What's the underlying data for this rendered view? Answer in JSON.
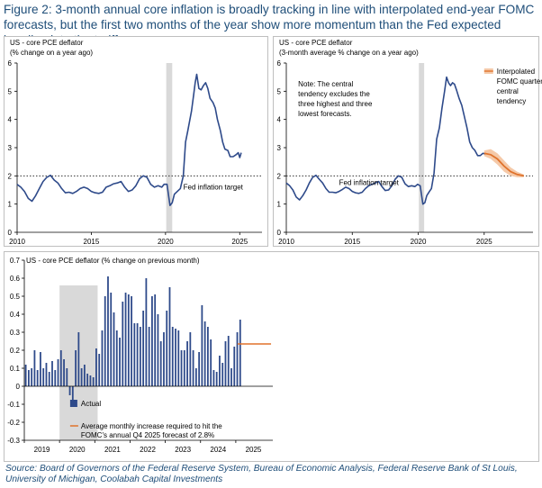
{
  "figure": {
    "title": "Figure 2: 3-month annual core  inflation is broadly tracking in line with interpolated end-year FOMC forecasts, but the first two months  of the year show more momentum than the Fed expected heading into the tariffs",
    "source": "Source: Board of Governors of the Federal Reserve System,  Bureau of Economic Analysis, Federal Reserve Bank of St Louis, University of Michigan, Coolabah Capital Investments"
  },
  "colors": {
    "series": "#2e4a8a",
    "target": "#333333",
    "fomc": "#e0722b",
    "band": "#f5c9a8",
    "shade": "#d9d9d9",
    "axis": "#000000"
  },
  "chart_data": [
    {
      "type": "line",
      "title_lines": [
        "US - core PCE deflator",
        "(% change on a year ago)"
      ],
      "xlim": [
        2010,
        2026.5
      ],
      "ylim": [
        0,
        6
      ],
      "x_ticks": [
        2010,
        2015,
        2020,
        2025
      ],
      "y_ticks": [
        0,
        1,
        2,
        3,
        4,
        5,
        6
      ],
      "reference_line": {
        "value": 2,
        "label": "Fed inflation target",
        "style": "dotted"
      },
      "shaded_period": [
        2020.05,
        2020.45
      ],
      "series": [
        {
          "points": [
            [
              2010.0,
              1.7
            ],
            [
              2010.25,
              1.6
            ],
            [
              2010.5,
              1.45
            ],
            [
              2010.75,
              1.2
            ],
            [
              2011.0,
              1.1
            ],
            [
              2011.25,
              1.3
            ],
            [
              2011.5,
              1.55
            ],
            [
              2011.75,
              1.8
            ],
            [
              2012.0,
              1.95
            ],
            [
              2012.25,
              2.02
            ],
            [
              2012.5,
              1.85
            ],
            [
              2012.75,
              1.75
            ],
            [
              2013.0,
              1.55
            ],
            [
              2013.25,
              1.4
            ],
            [
              2013.5,
              1.42
            ],
            [
              2013.75,
              1.38
            ],
            [
              2014.0,
              1.45
            ],
            [
              2014.25,
              1.55
            ],
            [
              2014.5,
              1.6
            ],
            [
              2014.75,
              1.55
            ],
            [
              2015.0,
              1.45
            ],
            [
              2015.25,
              1.4
            ],
            [
              2015.5,
              1.38
            ],
            [
              2015.75,
              1.42
            ],
            [
              2016.0,
              1.6
            ],
            [
              2016.25,
              1.65
            ],
            [
              2016.5,
              1.72
            ],
            [
              2016.75,
              1.75
            ],
            [
              2017.0,
              1.8
            ],
            [
              2017.25,
              1.6
            ],
            [
              2017.5,
              1.45
            ],
            [
              2017.75,
              1.5
            ],
            [
              2018.0,
              1.65
            ],
            [
              2018.25,
              1.9
            ],
            [
              2018.5,
              2.0
            ],
            [
              2018.75,
              1.95
            ],
            [
              2019.0,
              1.7
            ],
            [
              2019.25,
              1.6
            ],
            [
              2019.5,
              1.65
            ],
            [
              2019.75,
              1.6
            ],
            [
              2019.9,
              1.7
            ],
            [
              2020.1,
              1.7
            ],
            [
              2020.3,
              0.95
            ],
            [
              2020.45,
              1.05
            ],
            [
              2020.6,
              1.35
            ],
            [
              2020.8,
              1.45
            ],
            [
              2021.0,
              1.55
            ],
            [
              2021.2,
              2.0
            ],
            [
              2021.35,
              3.2
            ],
            [
              2021.5,
              3.6
            ],
            [
              2021.75,
              4.3
            ],
            [
              2021.9,
              4.9
            ],
            [
              2022.0,
              5.3
            ],
            [
              2022.1,
              5.6
            ],
            [
              2022.25,
              5.1
            ],
            [
              2022.4,
              5.05
            ],
            [
              2022.55,
              5.2
            ],
            [
              2022.7,
              5.3
            ],
            [
              2022.85,
              5.1
            ],
            [
              2023.0,
              4.75
            ],
            [
              2023.2,
              4.6
            ],
            [
              2023.35,
              4.4
            ],
            [
              2023.5,
              4.0
            ],
            [
              2023.7,
              3.6
            ],
            [
              2023.85,
              3.2
            ],
            [
              2024.0,
              2.95
            ],
            [
              2024.2,
              2.9
            ],
            [
              2024.35,
              2.68
            ],
            [
              2024.55,
              2.68
            ],
            [
              2024.75,
              2.75
            ],
            [
              2024.9,
              2.82
            ],
            [
              2025.0,
              2.65
            ],
            [
              2025.1,
              2.82
            ]
          ]
        }
      ]
    },
    {
      "type": "line",
      "title_lines": [
        "US - core PCE deflator",
        "(3-month average % change on a year ago)"
      ],
      "xlim": [
        2010,
        2028.7
      ],
      "ylim": [
        0,
        6
      ],
      "x_ticks": [
        2010,
        2015,
        2020,
        2025
      ],
      "y_ticks": [
        0,
        1,
        2,
        3,
        4,
        5,
        6
      ],
      "reference_line": {
        "value": 2,
        "label": "Fed inflation target",
        "style": "dotted"
      },
      "shaded_period": [
        2020.05,
        2020.45
      ],
      "note_lines": [
        "Note: The central",
        "tendency excludes the",
        "three highest and three",
        "lowest forecasts."
      ],
      "legend": {
        "position": "top-right",
        "label_lines": [
          "Interpolated",
          "FOMC quarterly",
          "central",
          "tendency"
        ]
      },
      "series": [
        {
          "points": [
            [
              2010.0,
              1.75
            ],
            [
              2010.25,
              1.65
            ],
            [
              2010.5,
              1.5
            ],
            [
              2010.75,
              1.25
            ],
            [
              2011.0,
              1.15
            ],
            [
              2011.25,
              1.3
            ],
            [
              2011.5,
              1.5
            ],
            [
              2011.75,
              1.75
            ],
            [
              2012.0,
              1.95
            ],
            [
              2012.25,
              2.02
            ],
            [
              2012.5,
              1.88
            ],
            [
              2012.75,
              1.75
            ],
            [
              2013.0,
              1.55
            ],
            [
              2013.25,
              1.42
            ],
            [
              2013.5,
              1.42
            ],
            [
              2013.75,
              1.4
            ],
            [
              2014.0,
              1.45
            ],
            [
              2014.25,
              1.52
            ],
            [
              2014.5,
              1.6
            ],
            [
              2014.75,
              1.55
            ],
            [
              2015.0,
              1.45
            ],
            [
              2015.25,
              1.4
            ],
            [
              2015.5,
              1.38
            ],
            [
              2015.75,
              1.42
            ],
            [
              2016.0,
              1.55
            ],
            [
              2016.25,
              1.65
            ],
            [
              2016.5,
              1.7
            ],
            [
              2016.75,
              1.75
            ],
            [
              2017.0,
              1.8
            ],
            [
              2017.25,
              1.62
            ],
            [
              2017.5,
              1.48
            ],
            [
              2017.75,
              1.5
            ],
            [
              2018.0,
              1.65
            ],
            [
              2018.25,
              1.88
            ],
            [
              2018.5,
              2.0
            ],
            [
              2018.75,
              1.95
            ],
            [
              2019.0,
              1.72
            ],
            [
              2019.25,
              1.62
            ],
            [
              2019.5,
              1.65
            ],
            [
              2019.75,
              1.62
            ],
            [
              2019.95,
              1.7
            ],
            [
              2020.15,
              1.65
            ],
            [
              2020.35,
              1.0
            ],
            [
              2020.5,
              1.05
            ],
            [
              2020.65,
              1.3
            ],
            [
              2020.85,
              1.45
            ],
            [
              2021.0,
              1.55
            ],
            [
              2021.2,
              2.1
            ],
            [
              2021.4,
              3.3
            ],
            [
              2021.6,
              3.7
            ],
            [
              2021.8,
              4.4
            ],
            [
              2022.0,
              5.0
            ],
            [
              2022.15,
              5.5
            ],
            [
              2022.3,
              5.3
            ],
            [
              2022.45,
              5.2
            ],
            [
              2022.6,
              5.3
            ],
            [
              2022.75,
              5.25
            ],
            [
              2022.9,
              5.05
            ],
            [
              2023.1,
              4.75
            ],
            [
              2023.3,
              4.5
            ],
            [
              2023.5,
              4.1
            ],
            [
              2023.7,
              3.7
            ],
            [
              2023.9,
              3.2
            ],
            [
              2024.1,
              3.0
            ],
            [
              2024.3,
              2.9
            ],
            [
              2024.5,
              2.72
            ],
            [
              2024.7,
              2.72
            ],
            [
              2024.9,
              2.8
            ],
            [
              2025.1,
              2.78
            ]
          ]
        },
        {
          "name": "Interpolated FOMC quarterly central tendency",
          "points": [
            [
              2025.0,
              2.8
            ],
            [
              2025.5,
              2.75
            ],
            [
              2026.0,
              2.6
            ],
            [
              2026.5,
              2.35
            ],
            [
              2027.0,
              2.15
            ],
            [
              2027.5,
              2.05
            ],
            [
              2028.0,
              2.0
            ]
          ],
          "band": [
            [
              2025.0,
              2.7,
              2.9
            ],
            [
              2025.5,
              2.6,
              2.95
            ],
            [
              2026.0,
              2.4,
              2.8
            ],
            [
              2026.5,
              2.15,
              2.55
            ],
            [
              2027.0,
              2.0,
              2.3
            ],
            [
              2027.5,
              1.95,
              2.15
            ],
            [
              2028.0,
              1.95,
              2.05
            ]
          ]
        }
      ]
    },
    {
      "type": "bar",
      "title": "US - core PCE deflator (% change on previous month)",
      "x_start": 2019.0,
      "periods_per_year": 12,
      "xlim": [
        2019,
        2026.05
      ],
      "ylim": [
        -0.3,
        0.7
      ],
      "x_ticks": [
        2019,
        2020,
        2021,
        2022,
        2023,
        2024,
        2025
      ],
      "y_ticks": [
        -0.3,
        -0.2,
        -0.1,
        0,
        0.1,
        0.2,
        0.3,
        0.4,
        0.5,
        0.6,
        0.7
      ],
      "shaded_period": [
        2020.0,
        2021.08
      ],
      "legend": {
        "position": "center-right",
        "actual_label": "Actual",
        "required_label_lines": [
          "Average monthly increase required to hit the",
          "FOMC's annual Q4 2025 forecast of 2.8%"
        ]
      },
      "series": [
        {
          "name": "Actual",
          "values": [
            0.12,
            0.09,
            0.1,
            0.2,
            0.09,
            0.19,
            0.1,
            0.13,
            0.08,
            0.14,
            0.09,
            0.15,
            0.2,
            0.15,
            0.1,
            -0.05,
            -0.09,
            0.2,
            0.3,
            0.1,
            0.12,
            0.07,
            0.06,
            0.05,
            0.21,
            0.18,
            0.31,
            0.5,
            0.61,
            0.52,
            0.41,
            0.31,
            0.27,
            0.47,
            0.52,
            0.51,
            0.5,
            0.35,
            0.35,
            0.33,
            0.42,
            0.6,
            0.33,
            0.5,
            0.51,
            0.4,
            0.25,
            0.3,
            0.42,
            0.55,
            0.33,
            0.32,
            0.31,
            0.2,
            0.2,
            0.25,
            0.3,
            0.2,
            0.1,
            0.19,
            0.45,
            0.36,
            0.33,
            0.26,
            0.09,
            0.08,
            0.17,
            0.13,
            0.25,
            0.28,
            0.1,
            0.22,
            0.3,
            0.37
          ]
        },
        {
          "name": "Average monthly increase required to hit the FOMC's annual Q4 2025 forecast of 2.8%",
          "x_range": [
            2025.05,
            2026.0
          ],
          "value": 0.235
        }
      ]
    }
  ]
}
